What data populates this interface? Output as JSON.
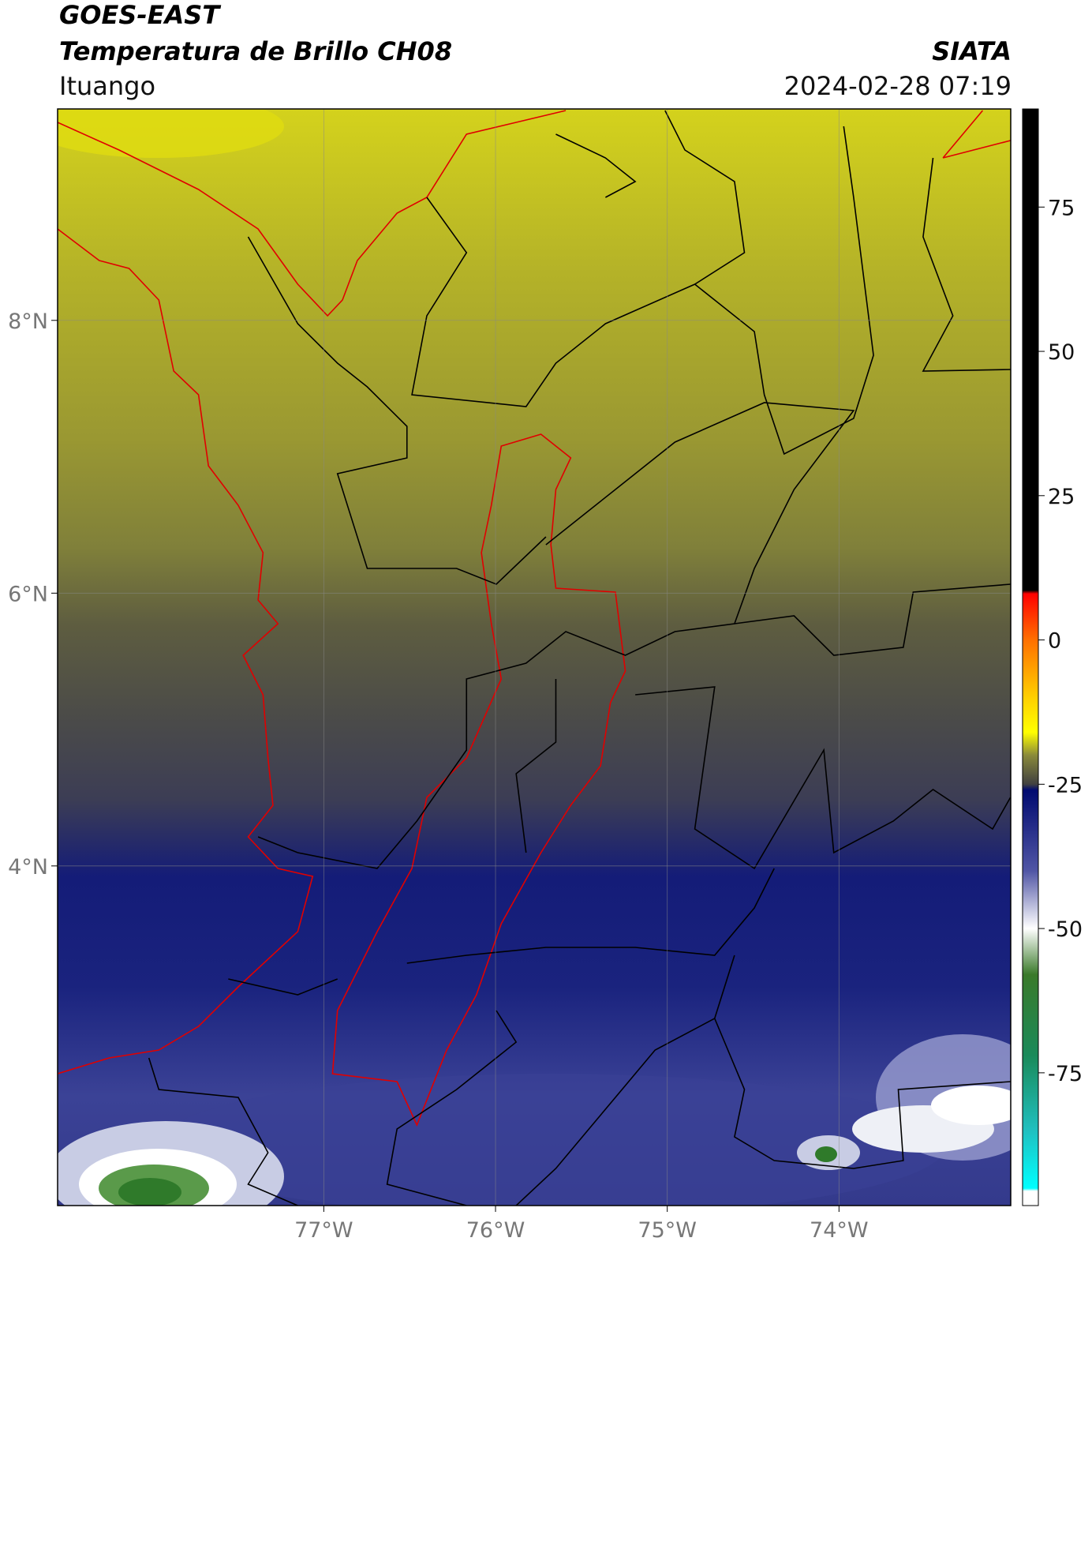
{
  "header": {
    "title": "GOES-EAST",
    "subtitle": "Temperatura de Brillo CH08",
    "agency": "SIATA",
    "location": "Ituango",
    "datetime": "2024-02-28 07:19"
  },
  "map": {
    "xlim": [
      -78.55,
      -73.0
    ],
    "ylim": [
      1.51,
      9.55
    ],
    "xticks": [
      {
        "value": -77,
        "label": "77°W"
      },
      {
        "value": -76,
        "label": "76°W"
      },
      {
        "value": -75,
        "label": "75°W"
      },
      {
        "value": -74,
        "label": "74°W"
      }
    ],
    "yticks": [
      {
        "value": 8,
        "label": "8°N"
      },
      {
        "value": 6,
        "label": "6°N"
      },
      {
        "value": 4,
        "label": "4°N"
      }
    ],
    "grid": true
  },
  "colorbar": {
    "lim": [
      -98,
      92
    ],
    "ticks": [
      75,
      50,
      25,
      0,
      -25,
      -50,
      -75
    ],
    "stops": [
      {
        "value": 92,
        "color": "#000000"
      },
      {
        "value": 8.6,
        "color": "#000000"
      },
      {
        "value": 8,
        "color": "#ff0000"
      },
      {
        "value": 0,
        "color": "#ff7000"
      },
      {
        "value": -10,
        "color": "#ffd000"
      },
      {
        "value": -16,
        "color": "#ffff00"
      },
      {
        "value": -20,
        "color": "#8a8a3a"
      },
      {
        "value": -25,
        "color": "#404040"
      },
      {
        "value": -26,
        "color": "#000a70"
      },
      {
        "value": -40,
        "color": "#5055a5"
      },
      {
        "value": -50,
        "color": "#ffffff"
      },
      {
        "value": -58,
        "color": "#3a7a2a"
      },
      {
        "value": -72,
        "color": "#1a8a5a"
      },
      {
        "value": -85,
        "color": "#20c0c0"
      },
      {
        "value": -95,
        "color": "#00ffff"
      },
      {
        "value": -95.5,
        "color": "#ffffff"
      },
      {
        "value": -98,
        "color": "#ffffff"
      }
    ]
  }
}
